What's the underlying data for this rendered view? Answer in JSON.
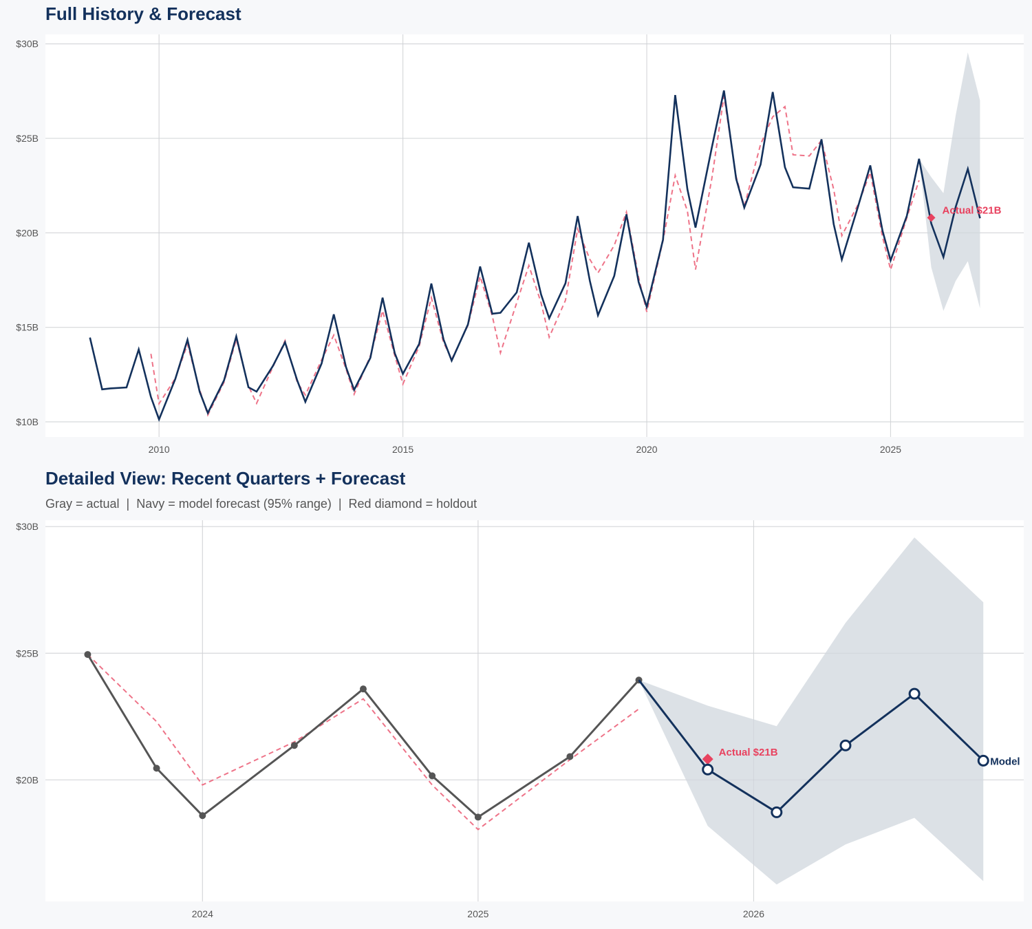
{
  "colors": {
    "navy": "#13315c",
    "red": "#e8425f",
    "fitted_red": "#ee7388",
    "gray_actual": "#555555",
    "band": "#dadfe5",
    "background": "#f7f8fa",
    "panel": "#ffffff"
  },
  "chart_data": [
    {
      "type": "line",
      "title": "Full History & Forecast",
      "xlim": [
        2007.67,
        2027.73
      ],
      "ylim": [
        9.2,
        30.5
      ],
      "x_ticks": [
        "2010",
        "2015",
        "2020",
        "2025"
      ],
      "y_ticks": [
        {
          "value": 10,
          "label": "$10B"
        },
        {
          "value": 15,
          "label": "$15B"
        },
        {
          "value": 20,
          "label": "$20B"
        },
        {
          "value": 25,
          "label": "$25B"
        },
        {
          "value": 30,
          "label": "$30B"
        }
      ],
      "grid": true,
      "actual": {
        "x": [
          "2008-08",
          "2008-11",
          "2009-01",
          "2009-05",
          "2009-08",
          "2009-11",
          "2010-01",
          "2010-05",
          "2010-08",
          "2010-11",
          "2011-01",
          "2011-05",
          "2011-08",
          "2011-11",
          "2012-01",
          "2012-05",
          "2012-08",
          "2012-11",
          "2013-01",
          "2013-05",
          "2013-08",
          "2013-11",
          "2014-01",
          "2014-05",
          "2014-08",
          "2014-11",
          "2015-01",
          "2015-05",
          "2015-08",
          "2015-11",
          "2016-01",
          "2016-05",
          "2016-08",
          "2016-11",
          "2017-01",
          "2017-05",
          "2017-08",
          "2017-11",
          "2018-01",
          "2018-05",
          "2018-08",
          "2018-11",
          "2019-01",
          "2019-05",
          "2019-08",
          "2019-11",
          "2020-01",
          "2020-05",
          "2020-08",
          "2020-11",
          "2021-01",
          "2021-05",
          "2021-08",
          "2021-11",
          "2022-01",
          "2022-05",
          "2022-08",
          "2022-11",
          "2023-01",
          "2023-05",
          "2023-08",
          "2023-11",
          "2024-01",
          "2024-05",
          "2024-08",
          "2024-11",
          "2025-01",
          "2025-05",
          "2025-08"
        ],
        "y": [
          14.46,
          11.72,
          11.77,
          11.82,
          13.83,
          11.32,
          10.13,
          12.27,
          14.34,
          11.59,
          10.47,
          12.2,
          14.52,
          11.83,
          11.6,
          12.95,
          14.21,
          12.19,
          11.06,
          13.09,
          15.69,
          12.9,
          11.69,
          13.39,
          16.57,
          13.63,
          12.54,
          14.12,
          17.32,
          14.36,
          13.24,
          15.15,
          18.22,
          15.72,
          15.77,
          16.85,
          19.48,
          16.74,
          15.48,
          17.33,
          20.89,
          17.46,
          15.64,
          17.72,
          20.98,
          17.4,
          16.08,
          19.64,
          27.29,
          22.31,
          20.28,
          24.5,
          27.53,
          22.86,
          21.34,
          23.61,
          27.45,
          23.47,
          22.41,
          22.34,
          24.95,
          20.46,
          18.59,
          21.4,
          23.57,
          20.12,
          18.54,
          20.9,
          23.92
        ]
      },
      "fitted": {
        "x": [
          "2009-11",
          "2010-01",
          "2010-05",
          "2010-08",
          "2010-11",
          "2011-01",
          "2011-05",
          "2011-08",
          "2011-11",
          "2012-01",
          "2012-05",
          "2012-08",
          "2012-11",
          "2013-01",
          "2013-05",
          "2013-08",
          "2013-11",
          "2014-01",
          "2014-05",
          "2014-08",
          "2014-11",
          "2015-01",
          "2015-05",
          "2015-08",
          "2015-11",
          "2016-01",
          "2016-05",
          "2016-08",
          "2016-11",
          "2017-01",
          "2017-05",
          "2017-08",
          "2017-11",
          "2018-01",
          "2018-05",
          "2018-08",
          "2018-11",
          "2019-01",
          "2019-05",
          "2019-08",
          "2019-11",
          "2020-01",
          "2020-05",
          "2020-08",
          "2020-11",
          "2021-01",
          "2021-05",
          "2021-08",
          "2021-11",
          "2022-01",
          "2022-05",
          "2022-08",
          "2022-11",
          "2023-01",
          "2023-05",
          "2023-08",
          "2023-11",
          "2024-01",
          "2024-05",
          "2024-08",
          "2024-11",
          "2025-01",
          "2025-05",
          "2025-08"
        ],
        "y": [
          13.6,
          10.96,
          12.3,
          14.1,
          11.7,
          10.36,
          12.1,
          14.37,
          11.9,
          10.98,
          12.9,
          14.3,
          12.1,
          11.42,
          13.28,
          14.59,
          12.8,
          11.46,
          13.5,
          15.88,
          13.5,
          12.0,
          14.0,
          16.57,
          14.2,
          13.3,
          15.1,
          17.7,
          15.6,
          13.65,
          16.3,
          18.27,
          16.3,
          14.48,
          16.43,
          20.21,
          18.6,
          17.88,
          19.34,
          21.1,
          17.65,
          15.82,
          19.58,
          23.04,
          21.16,
          18.06,
          22.86,
          27.23,
          22.98,
          21.4,
          24.68,
          26.14,
          26.68,
          24.13,
          24.07,
          24.9,
          22.3,
          19.85,
          21.5,
          23.2,
          19.8,
          18.05,
          20.8,
          22.78
        ]
      },
      "forecast": {
        "x": [
          "2025-08",
          "2025-11",
          "2026-02",
          "2026-05",
          "2026-08",
          "2026-11"
        ],
        "y": [
          23.92,
          20.5,
          18.72,
          21.36,
          23.38,
          20.77
        ],
        "lower": [
          23.92,
          18.18,
          15.87,
          17.45,
          18.5,
          16.0
        ],
        "upper": [
          23.92,
          22.95,
          22.1,
          26.2,
          29.55,
          27.0
        ]
      },
      "holdout": {
        "x": "2025-11",
        "y": 20.8,
        "label": "Actual $21B"
      }
    },
    {
      "type": "line",
      "title": "Detailed View: Recent Quarters + Forecast",
      "subtitle": "Gray = actual  |  Navy = model forecast (95% range)  |  Red diamond = holdout",
      "xlim": [
        2023.43,
        2026.98
      ],
      "ylim": [
        15.2,
        30.25
      ],
      "x_ticks": [
        "2024",
        "2025",
        "2026"
      ],
      "y_ticks": [
        {
          "value": 20,
          "label": "$20B"
        },
        {
          "value": 25,
          "label": "$25B"
        },
        {
          "value": 30,
          "label": "$30B"
        }
      ],
      "grid": true,
      "actual": {
        "x": [
          "2023-08",
          "2023-11",
          "2024-01",
          "2024-05",
          "2024-08",
          "2024-11",
          "2025-01",
          "2025-05",
          "2025-08"
        ],
        "y": [
          24.95,
          20.46,
          18.59,
          21.36,
          23.59,
          20.16,
          18.53,
          20.92,
          23.94
        ]
      },
      "fitted": {
        "x": [
          "2023-08",
          "2023-11",
          "2024-01",
          "2024-05",
          "2024-08",
          "2024-11",
          "2025-01",
          "2025-05",
          "2025-08"
        ],
        "y": [
          24.95,
          22.3,
          19.8,
          21.5,
          23.2,
          19.8,
          18.04,
          20.8,
          22.8
        ]
      },
      "forecast": {
        "x": [
          "2025-08",
          "2025-11",
          "2026-02",
          "2026-05",
          "2026-08",
          "2026-11"
        ],
        "y": [
          23.94,
          20.41,
          18.72,
          21.36,
          23.4,
          20.76
        ],
        "lower": [
          23.94,
          18.18,
          15.87,
          17.45,
          18.5,
          16.0
        ],
        "upper": [
          23.94,
          22.93,
          22.12,
          26.2,
          29.57,
          27.01
        ]
      },
      "holdout": {
        "x": "2025-11",
        "y": 20.82,
        "label": "Actual $21B"
      },
      "forecast_label": "Model"
    }
  ]
}
